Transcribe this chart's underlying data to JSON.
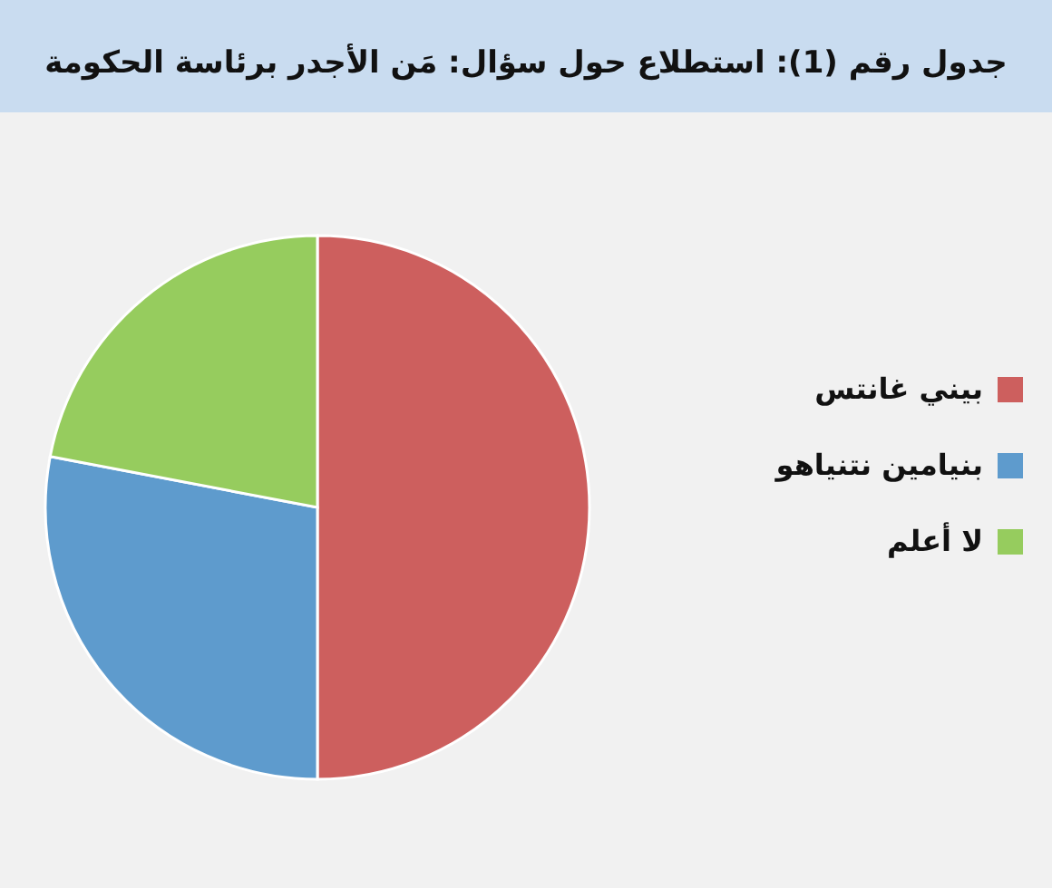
{
  "chart_data": {
    "type": "pie",
    "title": "جدول رقم (1): استطلاع حول سؤال: مَن الأجدر برئاسة الحكومة",
    "categories": [
      "بيني غانتس",
      "بنيامين نتنياهو",
      "لا أعلم"
    ],
    "values": [
      50,
      28,
      22
    ],
    "colors": [
      "#cd5f5e",
      "#5e9bcd",
      "#96cc5e"
    ],
    "legend": "right"
  }
}
